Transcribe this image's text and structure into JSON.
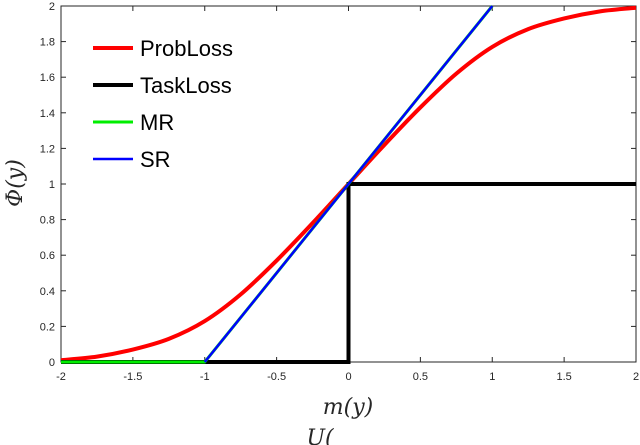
{
  "chart_data": {
    "type": "line",
    "xlabel": "m(y)",
    "ylabel": "Φ(y)",
    "footer_fragment": "U(",
    "xlim": [
      -2,
      2
    ],
    "ylim": [
      0,
      2
    ],
    "xticks": [
      -2,
      -1.5,
      -1,
      -0.5,
      0,
      0.5,
      1,
      1.5,
      2
    ],
    "xtick_labels": [
      "-2",
      "-1.5",
      "-1",
      "-0.5",
      "0",
      "0.5",
      "1",
      "1.5",
      "2"
    ],
    "yticks": [
      0,
      0.2,
      0.4,
      0.6,
      0.8,
      1,
      1.2,
      1.4,
      1.6,
      1.8,
      2
    ],
    "ytick_labels": [
      "0",
      "0.2",
      "0.4",
      "0.6",
      "0.8",
      "1",
      "1.2",
      "1.4",
      "1.6",
      "1.8",
      "2"
    ],
    "grid": false,
    "legend_placement": "top-left",
    "series": [
      {
        "name": "ProbLoss",
        "color": "#ff0000",
        "x": [
          -2,
          -1.75,
          -1.5,
          -1.25,
          -1,
          -0.75,
          -0.5,
          -0.25,
          0,
          0.25,
          0.5,
          0.75,
          1,
          1.25,
          1.5,
          1.75,
          2
        ],
        "y": [
          0.01,
          0.03,
          0.07,
          0.13,
          0.23,
          0.38,
          0.57,
          0.78,
          1.0,
          1.22,
          1.43,
          1.62,
          1.77,
          1.87,
          1.93,
          1.97,
          1.99
        ]
      },
      {
        "name": "TaskLoss",
        "color": "#000000",
        "x": [
          -2,
          0,
          0,
          2
        ],
        "y": [
          0,
          0,
          1,
          1
        ]
      },
      {
        "name": "MR",
        "color": "#00ee00",
        "x": [
          -2,
          -1,
          1
        ],
        "y": [
          0,
          0,
          2
        ]
      },
      {
        "name": "SR",
        "color": "#0000ff",
        "x": [
          -1,
          1
        ],
        "y": [
          0,
          2
        ]
      }
    ]
  }
}
